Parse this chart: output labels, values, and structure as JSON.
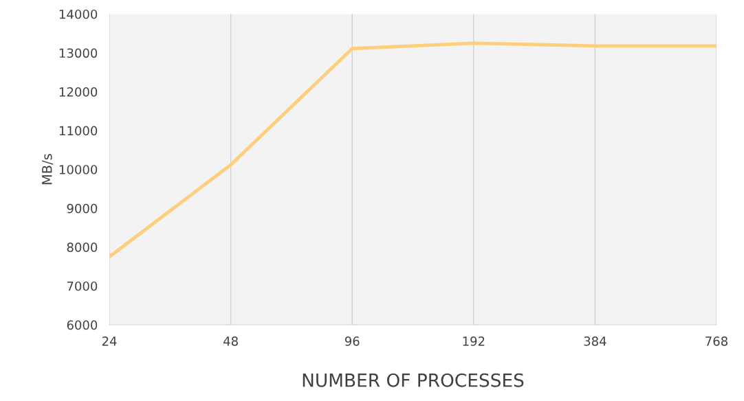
{
  "chart_data": {
    "type": "line",
    "xlabel": "NUMBER OF PROCESSES",
    "ylabel": "MB/s",
    "categories": [
      "24",
      "48",
      "96",
      "192",
      "384",
      "768"
    ],
    "series": [
      {
        "color": "#fdcf7d",
        "values": [
          7750,
          10120,
          13110,
          13250,
          13180,
          13180
        ]
      }
    ],
    "ylim": [
      6000,
      14000
    ],
    "yticks": [
      6000,
      7000,
      8000,
      9000,
      10000,
      11000,
      12000,
      13000,
      14000
    ],
    "grid": "x",
    "marker": "none",
    "line_style": "solid"
  }
}
